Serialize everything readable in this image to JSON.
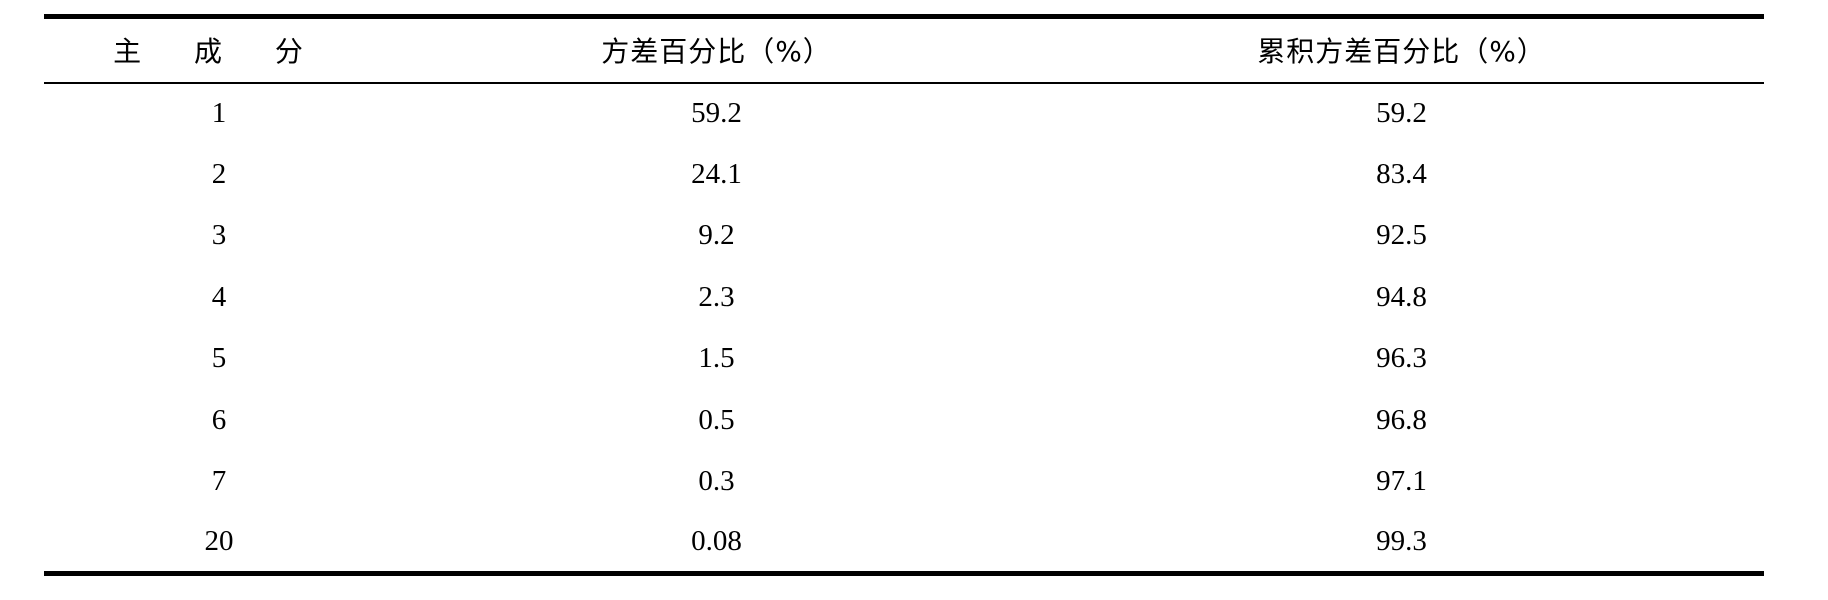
{
  "table": {
    "headers": {
      "component": "主 成 分",
      "variance_pct": "方差百分比（%）",
      "cumulative_pct": "累积方差百分比（%）"
    },
    "rows": [
      {
        "component": "1",
        "variance_pct": "59.2",
        "cumulative_pct": "59.2"
      },
      {
        "component": "2",
        "variance_pct": "24.1",
        "cumulative_pct": "83.4"
      },
      {
        "component": "3",
        "variance_pct": "9.2",
        "cumulative_pct": "92.5"
      },
      {
        "component": "4",
        "variance_pct": "2.3",
        "cumulative_pct": "94.8"
      },
      {
        "component": "5",
        "variance_pct": "1.5",
        "cumulative_pct": "96.3"
      },
      {
        "component": "6",
        "variance_pct": "0.5",
        "cumulative_pct": "96.8"
      },
      {
        "component": "7",
        "variance_pct": "0.3",
        "cumulative_pct": "97.1"
      },
      {
        "component": "20",
        "variance_pct": "0.08",
        "cumulative_pct": "99.3"
      }
    ]
  }
}
